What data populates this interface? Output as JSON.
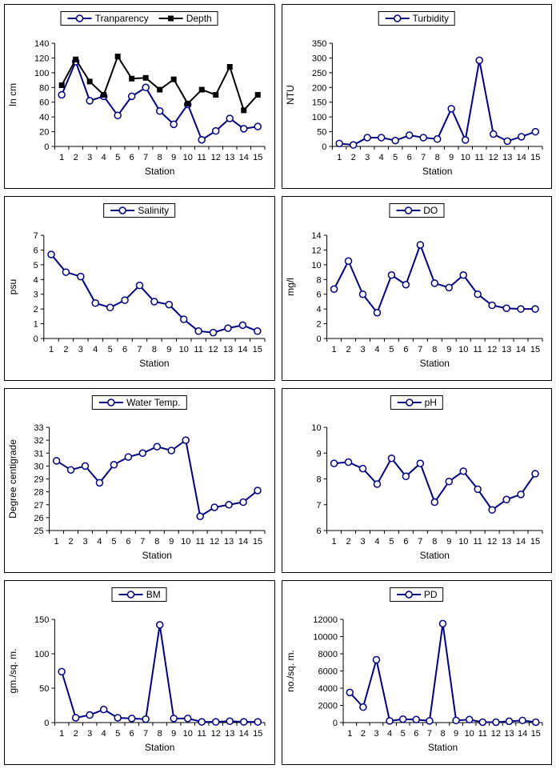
{
  "colors": {
    "line_navy": "#000080",
    "line_black": "#000000",
    "marker_fill": "#ffffff",
    "axis": "#000000",
    "text": "#000000",
    "panel_border": "#000000",
    "background": "#ffffff"
  },
  "chart_data": [
    {
      "type": "line",
      "id": "transparency-depth",
      "xlabel": "Station",
      "ylabel": "In cm",
      "ylim": [
        0,
        140
      ],
      "ytick_step": 20,
      "grid": false,
      "legend_position": "top",
      "categories": [
        1,
        2,
        3,
        4,
        5,
        6,
        7,
        8,
        9,
        10,
        11,
        12,
        13,
        14,
        15
      ],
      "series": [
        {
          "name": "Tranparency",
          "marker": "circle",
          "color": "#000080",
          "values": [
            70,
            115,
            62,
            68,
            42,
            68,
            80,
            48,
            30,
            57,
            9,
            21,
            38,
            24,
            27
          ]
        },
        {
          "name": "Depth",
          "marker": "square",
          "color": "#000000",
          "values": [
            83,
            118,
            88,
            70,
            122,
            92,
            93,
            77,
            91,
            58,
            77,
            70,
            108,
            49,
            70
          ]
        }
      ]
    },
    {
      "type": "line",
      "id": "turbidity",
      "xlabel": "Station",
      "ylabel": "NTU",
      "ylim": [
        0,
        350
      ],
      "ytick_step": 50,
      "grid": false,
      "legend_position": "top",
      "categories": [
        1,
        2,
        3,
        4,
        5,
        6,
        7,
        8,
        9,
        10,
        11,
        12,
        13,
        14,
        15
      ],
      "series": [
        {
          "name": "Turbidity",
          "marker": "circle",
          "color": "#000080",
          "values": [
            10,
            5,
            30,
            30,
            20,
            38,
            30,
            25,
            128,
            22,
            292,
            42,
            18,
            33,
            50
          ]
        }
      ]
    },
    {
      "type": "line",
      "id": "salinity",
      "xlabel": "Station",
      "ylabel": "psu",
      "ylim": [
        0,
        7
      ],
      "ytick_step": 1,
      "grid": false,
      "legend_position": "top",
      "categories": [
        1,
        2,
        3,
        4,
        5,
        6,
        7,
        8,
        9,
        10,
        11,
        12,
        13,
        14,
        15
      ],
      "series": [
        {
          "name": "Salinity",
          "marker": "circle",
          "color": "#000080",
          "values": [
            5.7,
            4.5,
            4.2,
            2.4,
            2.1,
            2.6,
            3.6,
            2.5,
            2.3,
            1.3,
            0.5,
            0.4,
            0.7,
            0.9,
            0.5
          ]
        }
      ]
    },
    {
      "type": "line",
      "id": "do",
      "xlabel": "Station",
      "ylabel": "mg/l",
      "ylim": [
        0,
        14
      ],
      "ytick_step": 2,
      "grid": false,
      "legend_position": "top",
      "categories": [
        1,
        2,
        3,
        4,
        5,
        6,
        7,
        8,
        9,
        10,
        11,
        12,
        13,
        14,
        15
      ],
      "series": [
        {
          "name": "DO",
          "marker": "circle",
          "color": "#000080",
          "values": [
            6.7,
            10.5,
            6,
            3.5,
            8.6,
            7.3,
            12.7,
            7.5,
            6.9,
            8.6,
            6,
            4.5,
            4.1,
            4,
            4
          ]
        }
      ]
    },
    {
      "type": "line",
      "id": "water-temp",
      "xlabel": "Station",
      "ylabel": "Degree centigrade",
      "ylim": [
        25,
        33
      ],
      "ytick_step": 1,
      "grid": false,
      "legend_position": "top",
      "categories": [
        1,
        2,
        3,
        4,
        5,
        6,
        7,
        8,
        9,
        10,
        11,
        12,
        13,
        14,
        15
      ],
      "series": [
        {
          "name": "Water Temp.",
          "marker": "circle",
          "color": "#000080",
          "values": [
            30.4,
            29.7,
            30,
            28.7,
            30.1,
            30.7,
            31,
            31.5,
            31.2,
            32,
            26.1,
            26.8,
            27,
            27.2,
            28.1
          ]
        }
      ]
    },
    {
      "type": "line",
      "id": "ph",
      "xlabel": "Station",
      "ylabel": "",
      "ylim": [
        6,
        10
      ],
      "ytick_step": 1,
      "grid": false,
      "legend_position": "top",
      "categories": [
        1,
        2,
        3,
        4,
        5,
        6,
        7,
        8,
        9,
        10,
        11,
        12,
        13,
        14,
        15
      ],
      "series": [
        {
          "name": "pH",
          "marker": "circle",
          "color": "#000080",
          "values": [
            8.6,
            8.65,
            8.4,
            7.8,
            8.8,
            8.1,
            8.6,
            7.1,
            7.9,
            8.3,
            7.6,
            6.8,
            7.2,
            7.4,
            8.2
          ]
        }
      ]
    },
    {
      "type": "line",
      "id": "bm",
      "xlabel": "Station",
      "ylabel": "gm./sq. m.",
      "ylim": [
        0,
        150
      ],
      "ytick_step": 50,
      "grid": false,
      "legend_position": "top",
      "categories": [
        1,
        2,
        3,
        4,
        5,
        6,
        7,
        8,
        9,
        10,
        11,
        12,
        13,
        14,
        15
      ],
      "series": [
        {
          "name": "BM",
          "marker": "circle",
          "color": "#000080",
          "values": [
            74,
            7,
            11,
            19,
            7,
            6,
            5,
            142,
            6,
            6,
            1,
            1,
            2,
            1,
            1
          ]
        }
      ]
    },
    {
      "type": "line",
      "id": "pd",
      "xlabel": "Station",
      "ylabel": "no./sq. m.",
      "ylim": [
        0,
        12000
      ],
      "ytick_step": 2000,
      "grid": false,
      "legend_position": "top",
      "categories": [
        1,
        2,
        3,
        4,
        5,
        6,
        7,
        8,
        9,
        10,
        11,
        12,
        13,
        14,
        15
      ],
      "series": [
        {
          "name": "PD",
          "marker": "circle",
          "color": "#000080",
          "values": [
            3500,
            1800,
            7300,
            200,
            400,
            350,
            200,
            11500,
            250,
            350,
            50,
            50,
            150,
            250,
            50
          ]
        }
      ]
    }
  ]
}
